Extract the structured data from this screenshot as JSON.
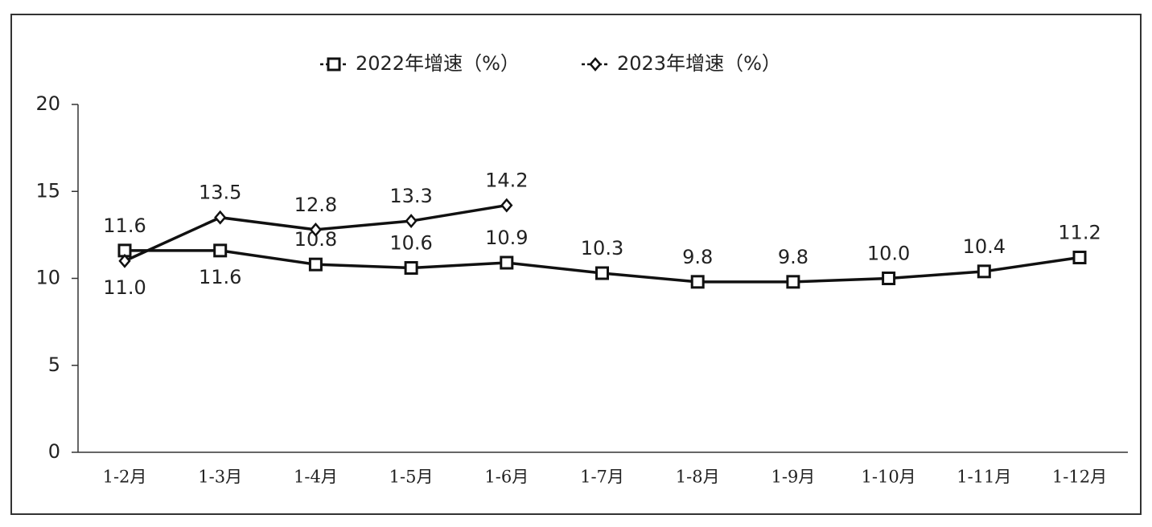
{
  "chart_data": {
    "type": "line",
    "categories": [
      "1-2月",
      "1-3月",
      "1-4月",
      "1-5月",
      "1-6月",
      "1-7月",
      "1-8月",
      "1-9月",
      "1-10月",
      "1-11月",
      "1-12月"
    ],
    "series": [
      {
        "name": "2022年增速（%）",
        "color": "#111111",
        "marker": "square",
        "values": [
          11.6,
          11.6,
          10.8,
          10.6,
          10.9,
          10.3,
          9.8,
          9.8,
          10.0,
          10.4,
          11.2
        ],
        "value_labels": [
          "11.6",
          "11.6",
          "10.8",
          "10.6",
          "10.9",
          "10.3",
          "9.8",
          "9.8",
          "10.0",
          "10.4",
          "11.2"
        ]
      },
      {
        "name": "2023年增速（%）",
        "color": "#111111",
        "marker": "diamond",
        "values": [
          11.0,
          13.5,
          12.8,
          13.3,
          14.2,
          null,
          null,
          null,
          null,
          null,
          null
        ],
        "value_labels": [
          "11.0",
          "13.5",
          "12.8",
          "13.3",
          "14.2",
          null,
          null,
          null,
          null,
          null,
          null
        ]
      }
    ],
    "ylim": [
      0,
      20
    ],
    "yticks": [
      0,
      5,
      10,
      15,
      20
    ],
    "grid": false,
    "legend": "top"
  }
}
